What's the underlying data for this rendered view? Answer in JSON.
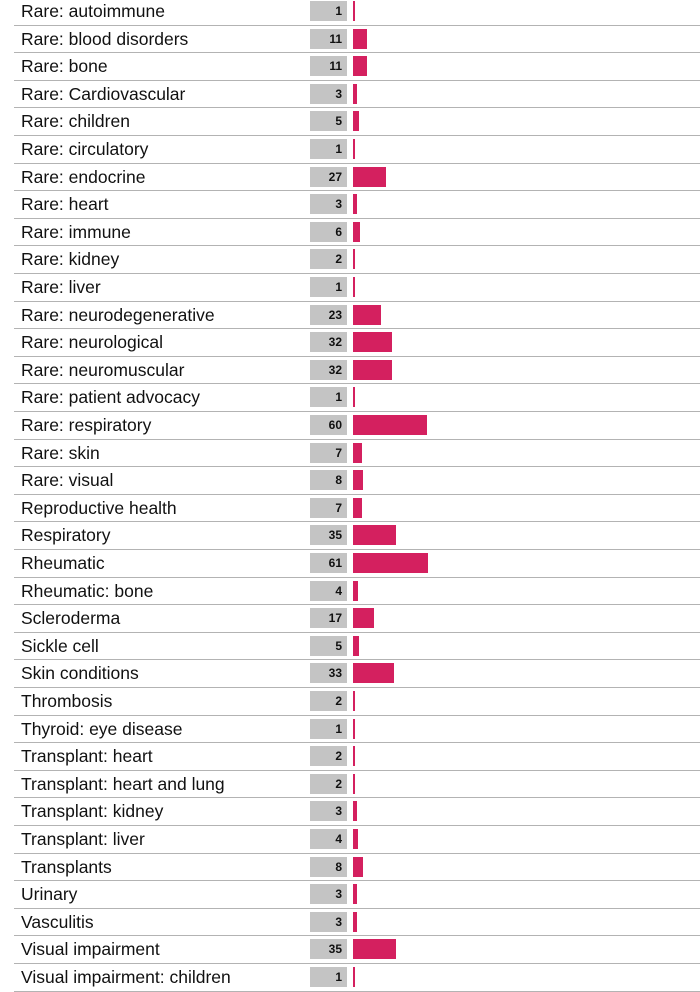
{
  "chart_data": {
    "type": "bar",
    "orientation": "horizontal",
    "categories": [
      "Rare: autoimmune",
      "Rare: blood disorders",
      "Rare: bone",
      "Rare: Cardiovascular",
      "Rare: children",
      "Rare: circulatory",
      "Rare: endocrine",
      "Rare: heart",
      "Rare: immune",
      "Rare: kidney",
      "Rare: liver",
      "Rare: neurodegenerative",
      "Rare: neurological",
      "Rare: neuromuscular",
      "Rare: patient advocacy",
      "Rare: respiratory",
      "Rare: skin",
      "Rare: visual",
      "Reproductive health",
      "Respiratory",
      "Rheumatic",
      "Rheumatic: bone",
      "Scleroderma",
      "Sickle cell",
      "Skin conditions",
      "Thrombosis",
      "Thyroid: eye disease",
      "Transplant: heart",
      "Transplant: heart and lung",
      "Transplant: kidney",
      "Transplant: liver",
      "Transplants",
      "Urinary",
      "Vasculitis",
      "Visual impairment",
      "Visual impairment: children"
    ],
    "values": [
      1,
      11,
      11,
      3,
      5,
      1,
      27,
      3,
      6,
      2,
      1,
      23,
      32,
      32,
      1,
      60,
      7,
      8,
      7,
      35,
      61,
      4,
      17,
      5,
      33,
      2,
      1,
      2,
      2,
      3,
      4,
      8,
      3,
      3,
      35,
      1
    ],
    "bar_color": "#d4205f",
    "value_box_color": "#c4c4c4",
    "grid": false
  }
}
